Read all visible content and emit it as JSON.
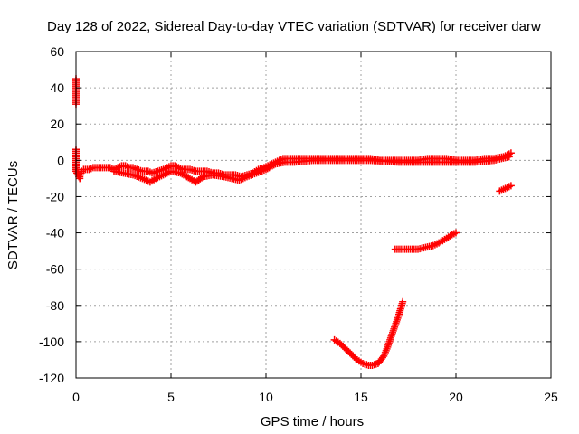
{
  "chart_data": {
    "type": "scatter",
    "title": "Day 128 of 2022, Sidereal Day-to-day VTEC variation (SDTVAR) for receiver darw",
    "xlabel": "GPS time / hours",
    "ylabel": "SDTVAR / TECUs",
    "xlim": [
      0,
      25
    ],
    "ylim": [
      -120,
      60
    ],
    "xticks": [
      0,
      5,
      10,
      15,
      20,
      25
    ],
    "yticks": [
      -120,
      -100,
      -80,
      -60,
      -40,
      -20,
      0,
      20,
      40,
      60
    ],
    "grid": true,
    "marker": "plus",
    "series": [
      {
        "name": "main-track",
        "color": "#ff0000",
        "points": [
          [
            0.0,
            -4
          ],
          [
            0.1,
            -7
          ],
          [
            0.2,
            -9
          ],
          [
            0.3,
            -6
          ],
          [
            0.4,
            -5
          ],
          [
            0.5,
            -5
          ],
          [
            0.7,
            -5
          ],
          [
            0.9,
            -4
          ],
          [
            1.2,
            -4
          ],
          [
            1.5,
            -4
          ],
          [
            1.8,
            -4
          ],
          [
            2.0,
            -5
          ],
          [
            2.2,
            -4
          ],
          [
            2.4,
            -3
          ],
          [
            2.6,
            -3
          ],
          [
            2.8,
            -4
          ],
          [
            3.0,
            -4
          ],
          [
            3.2,
            -5
          ],
          [
            3.5,
            -6
          ],
          [
            3.8,
            -6
          ],
          [
            4.0,
            -7
          ],
          [
            4.3,
            -6
          ],
          [
            4.6,
            -5
          ],
          [
            4.8,
            -4
          ],
          [
            5.0,
            -3
          ],
          [
            5.2,
            -3
          ],
          [
            5.4,
            -4
          ],
          [
            5.6,
            -5
          ],
          [
            5.8,
            -5
          ],
          [
            6.0,
            -5
          ],
          [
            6.3,
            -6
          ],
          [
            6.6,
            -6
          ],
          [
            6.9,
            -6
          ],
          [
            7.2,
            -7
          ],
          [
            7.5,
            -7
          ],
          [
            7.8,
            -8
          ],
          [
            8.1,
            -8
          ],
          [
            8.4,
            -8
          ],
          [
            8.7,
            -9
          ],
          [
            9.0,
            -8
          ],
          [
            9.3,
            -7
          ],
          [
            9.6,
            -5
          ],
          [
            9.9,
            -4
          ],
          [
            10.1,
            -3
          ],
          [
            10.3,
            -2
          ],
          [
            10.5,
            -1
          ],
          [
            10.7,
            0
          ],
          [
            10.9,
            1
          ],
          [
            11.1,
            1
          ],
          [
            11.5,
            1
          ],
          [
            12.0,
            1
          ],
          [
            12.5,
            1
          ],
          [
            13.0,
            1
          ],
          [
            13.5,
            1
          ],
          [
            14.0,
            1
          ],
          [
            14.5,
            1
          ],
          [
            15.0,
            1
          ],
          [
            15.5,
            1
          ],
          [
            16.0,
            0
          ],
          [
            16.5,
            0
          ],
          [
            17.0,
            0
          ],
          [
            17.5,
            0
          ],
          [
            18.0,
            0
          ],
          [
            18.5,
            1
          ],
          [
            19.0,
            1
          ],
          [
            19.5,
            1
          ],
          [
            20.0,
            0
          ],
          [
            20.5,
            0
          ],
          [
            21.0,
            0
          ],
          [
            21.5,
            1
          ],
          [
            22.0,
            1
          ],
          [
            22.5,
            2
          ],
          [
            22.9,
            4
          ]
        ]
      },
      {
        "name": "lower-band",
        "color": "#ff0000",
        "points": [
          [
            2.0,
            -6
          ],
          [
            2.5,
            -7
          ],
          [
            3.0,
            -8
          ],
          [
            3.5,
            -10
          ],
          [
            3.9,
            -12
          ],
          [
            4.2,
            -10
          ],
          [
            4.6,
            -8
          ],
          [
            5.0,
            -6
          ],
          [
            5.5,
            -7
          ],
          [
            6.0,
            -10
          ],
          [
            6.3,
            -12
          ],
          [
            6.7,
            -9
          ],
          [
            7.2,
            -8
          ],
          [
            7.8,
            -9
          ],
          [
            8.2,
            -10
          ],
          [
            8.6,
            -11
          ],
          [
            9.0,
            -9
          ],
          [
            9.5,
            -7
          ],
          [
            10.0,
            -5
          ],
          [
            10.5,
            -2
          ],
          [
            11.0,
            -1
          ],
          [
            11.5,
            -1
          ],
          [
            12.5,
            0
          ],
          [
            14.0,
            0
          ],
          [
            15.5,
            0
          ],
          [
            17.0,
            -1
          ],
          [
            18.5,
            -1
          ],
          [
            20.0,
            -1
          ],
          [
            21.0,
            -1
          ],
          [
            22.0,
            0
          ],
          [
            22.8,
            2
          ]
        ]
      },
      {
        "name": "isolated-early",
        "color": "#ff0000",
        "points": [
          [
            0.0,
            45
          ],
          [
            0.0,
            31
          ],
          [
            0.0,
            6
          ],
          [
            0.0,
            -4
          ],
          [
            0.0,
            -6
          ],
          [
            0.2,
            -10
          ]
        ]
      },
      {
        "name": "late-segment",
        "color": "#ff0000",
        "points": [
          [
            22.3,
            -17
          ],
          [
            22.5,
            -16
          ],
          [
            22.7,
            -15
          ],
          [
            22.9,
            -14
          ]
        ]
      },
      {
        "name": "mid-arc",
        "color": "#ff0000",
        "points": [
          [
            16.8,
            -49
          ],
          [
            17.2,
            -49
          ],
          [
            17.6,
            -49
          ],
          [
            18.0,
            -49
          ],
          [
            18.4,
            -48
          ],
          [
            18.8,
            -47
          ],
          [
            19.2,
            -45
          ],
          [
            19.5,
            -43
          ],
          [
            19.8,
            -41
          ],
          [
            20.0,
            -40
          ]
        ]
      },
      {
        "name": "deep-arc",
        "color": "#ff0000",
        "points": [
          [
            13.6,
            -99
          ],
          [
            13.9,
            -101
          ],
          [
            14.2,
            -104
          ],
          [
            14.5,
            -107
          ],
          [
            14.8,
            -110
          ],
          [
            15.1,
            -112
          ],
          [
            15.4,
            -113
          ],
          [
            15.6,
            -113
          ],
          [
            15.9,
            -112
          ],
          [
            16.2,
            -108
          ],
          [
            16.4,
            -103
          ],
          [
            16.6,
            -97
          ],
          [
            16.8,
            -91
          ],
          [
            17.0,
            -85
          ],
          [
            17.2,
            -78
          ]
        ]
      }
    ]
  }
}
